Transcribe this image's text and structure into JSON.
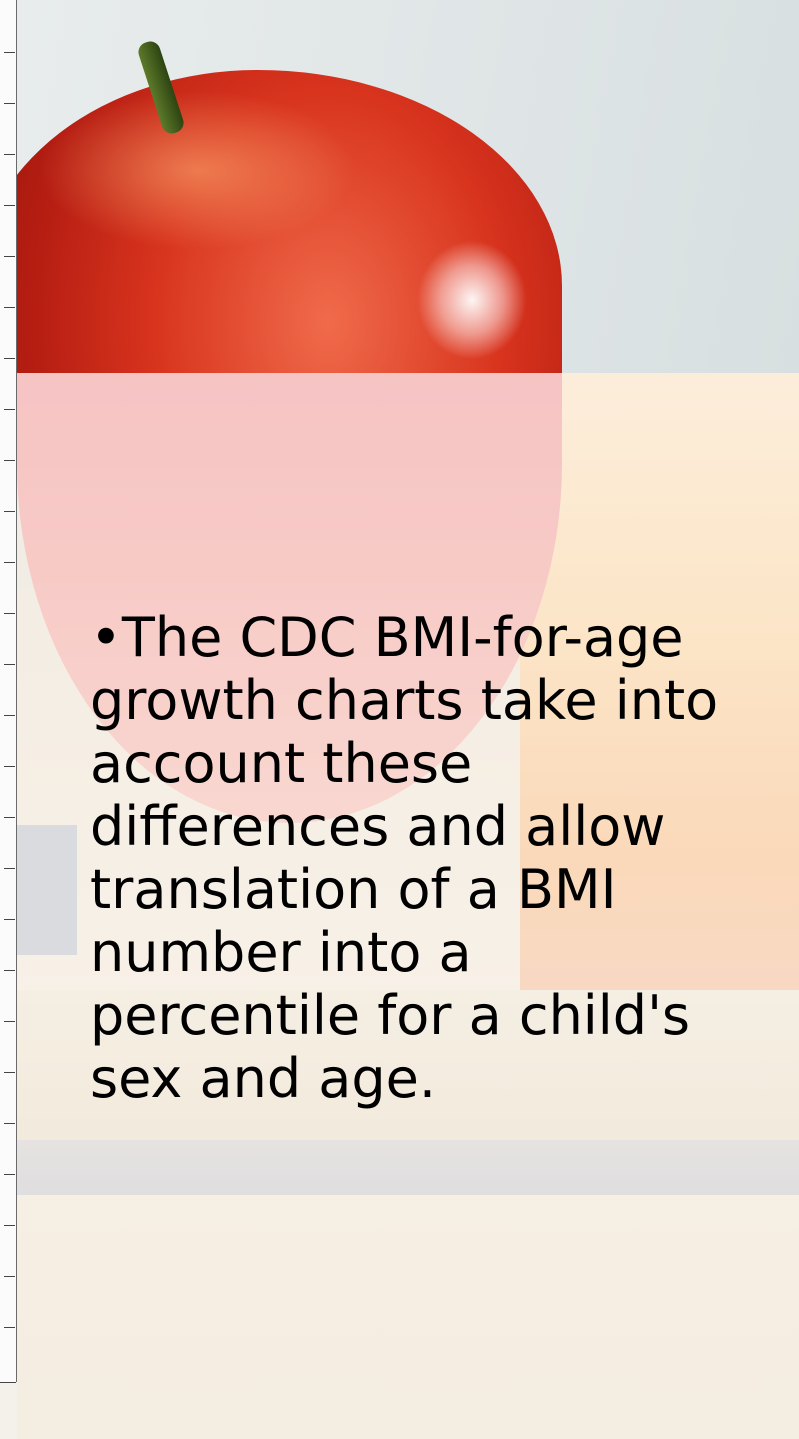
{
  "slide": {
    "bullet_symbol": "•",
    "text": "The CDC BMI-for-age growth charts take into account these differences and allow translation of a BMI number into a percentile for a child's sex and age."
  }
}
